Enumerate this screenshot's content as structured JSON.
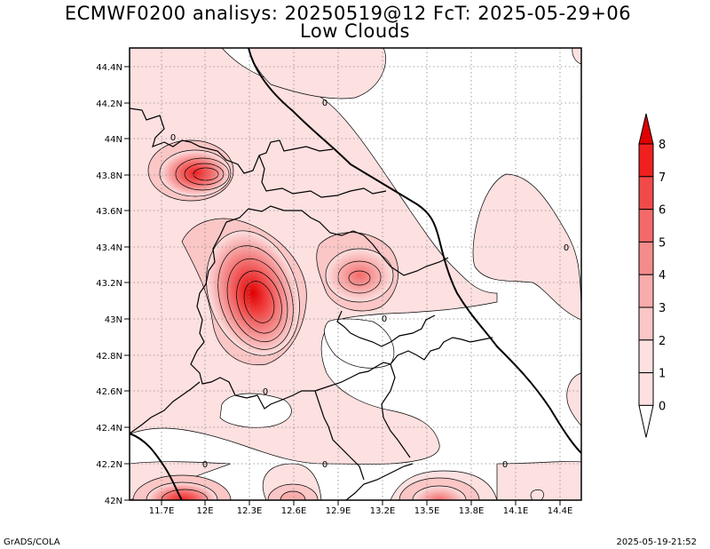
{
  "title_line1": "ECMWF0200 analisys: 20250519@12 FcT: 2025-05-29+06",
  "title_line2": "Low Clouds",
  "lat_labels": [
    "44.4N",
    "44.2N",
    "44N",
    "43.8N",
    "43.6N",
    "43.4N",
    "43.2N",
    "43N",
    "42.8N",
    "42.6N",
    "42.4N",
    "42.2N",
    "42N"
  ],
  "lon_labels": [
    "11.7E",
    "12E",
    "12.3E",
    "12.6E",
    "12.9E",
    "13.2E",
    "13.5E",
    "13.8E",
    "14.1E",
    "14.4E"
  ],
  "colorbar": {
    "labels": [
      "8",
      "7",
      "6",
      "5",
      "4",
      "3",
      "2",
      "1",
      "0"
    ],
    "colors": [
      "#e00000",
      "#f02020",
      "#f24a4a",
      "#f46a6a",
      "#f58c8c",
      "#f8acac",
      "#fac6c6",
      "#fde0e0",
      "#ffffff"
    ]
  },
  "contour_label": "0",
  "footer_left": "GrADS/COLA",
  "footer_right": "2025-05-19-21:52"
}
